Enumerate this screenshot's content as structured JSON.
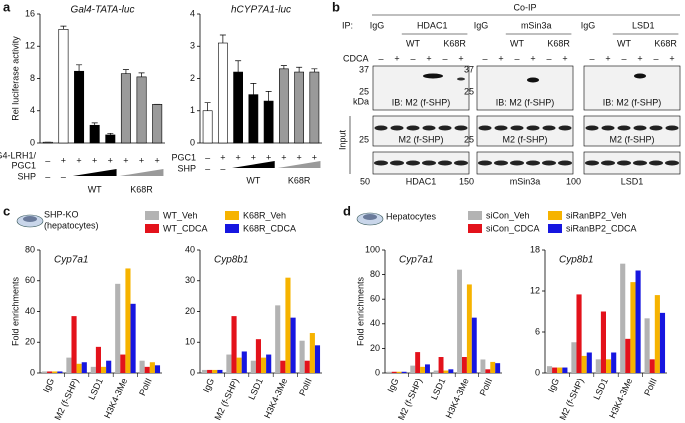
{
  "figure": {
    "panel_labels": [
      "a",
      "b",
      "c",
      "d"
    ],
    "c_caption": [
      "SHP-KO",
      "(hepatocytes)"
    ],
    "d_caption": [
      "Hepatocytes"
    ]
  },
  "chart_data": [
    {
      "type": "bar",
      "title": "Gal4-TATA-luc",
      "ylabel": "Rel luciferase activity",
      "values": [
        0.1,
        14.1,
        8.9,
        2.2,
        1.0,
        8.6,
        8.2,
        4.8
      ],
      "errors": [
        0,
        0.4,
        0.8,
        0.3,
        0.2,
        0.5,
        0.5,
        0
      ],
      "colors": [
        "#ffffff",
        "#ffffff",
        "#000000",
        "#000000",
        "#000000",
        "#9a9a9a",
        "#9a9a9a",
        "#9a9a9a"
      ],
      "ylim": [
        0,
        16
      ],
      "yticks": [
        0,
        4,
        8,
        12,
        16
      ],
      "rows": [
        {
          "label": [
            "G4-LRH1/",
            "PGC1"
          ],
          "signs": [
            "–",
            "+",
            "+",
            "+",
            "+",
            "+",
            "+",
            "+"
          ]
        },
        {
          "label": [
            "SHP"
          ],
          "signs": [
            "–",
            "–"
          ]
        }
      ],
      "groups": [
        "WT",
        "K68R"
      ]
    },
    {
      "type": "bar",
      "title": "hCYP7A1-luc",
      "values": [
        1.0,
        3.1,
        2.2,
        1.5,
        1.3,
        2.3,
        2.2,
        2.2
      ],
      "errors": [
        0.25,
        0.25,
        0.35,
        0.35,
        0.3,
        0.1,
        0.15,
        0.1
      ],
      "colors": [
        "#ffffff",
        "#ffffff",
        "#000000",
        "#000000",
        "#000000",
        "#9a9a9a",
        "#9a9a9a",
        "#9a9a9a"
      ],
      "ylim": [
        0,
        4
      ],
      "yticks": [
        0,
        1,
        2,
        3,
        4
      ],
      "rows": [
        {
          "label": [
            "PGC1"
          ],
          "signs": [
            "–",
            "+",
            "+",
            "+",
            "+",
            "+",
            "+",
            "+"
          ]
        },
        {
          "label": [
            "SHP"
          ],
          "signs": [
            "–",
            "–"
          ]
        }
      ],
      "groups": [
        "WT",
        "K68R"
      ]
    },
    {
      "type": "bar",
      "title": "Cyp7a1",
      "ylabel": "Fold enrichments",
      "categories": [
        "IgG",
        "M2 (f-SHP)",
        "LSD1",
        "H3K4-3Me",
        "PolII"
      ],
      "ylim": [
        0,
        80
      ],
      "yticks": [
        0,
        20,
        40,
        60,
        80
      ],
      "series": [
        {
          "name": "WT_Veh",
          "color": "#b3b3b3",
          "values": [
            1,
            10,
            4,
            58,
            8
          ]
        },
        {
          "name": "WT_CDCA",
          "color": "#e3121b",
          "values": [
            1,
            37,
            17,
            12,
            4
          ]
        },
        {
          "name": "K68R_Veh",
          "color": "#f6b300",
          "values": [
            1,
            6,
            4,
            68,
            7
          ]
        },
        {
          "name": "K68R_CDCA",
          "color": "#1616e0",
          "values": [
            1,
            7,
            8,
            45,
            5
          ]
        }
      ]
    },
    {
      "type": "bar",
      "title": "Cyp8b1",
      "categories": [
        "IgG",
        "M2 (f-SHP)",
        "LSD1",
        "H3K4-3Me",
        "PolII"
      ],
      "ylim": [
        0,
        40
      ],
      "yticks": [
        0,
        10,
        20,
        30,
        40
      ],
      "series": [
        {
          "name": "WT_Veh",
          "color": "#b3b3b3",
          "values": [
            1,
            6,
            4,
            22,
            10.5
          ]
        },
        {
          "name": "WT_CDCA",
          "color": "#e3121b",
          "values": [
            1,
            18.5,
            11,
            4,
            4
          ]
        },
        {
          "name": "K68R_Veh",
          "color": "#f6b300",
          "values": [
            1,
            5,
            5,
            31,
            13
          ]
        },
        {
          "name": "K68R_CDCA",
          "color": "#1616e0",
          "values": [
            1,
            7,
            6,
            18,
            9
          ]
        }
      ]
    },
    {
      "type": "bar",
      "title": "Cyp7a1",
      "ylabel": "Fold enrichments",
      "categories": [
        "IgG",
        "M2 (f-SHP)",
        "LSD1",
        "H3K4-3Me",
        "PolII"
      ],
      "ylim": [
        0,
        100
      ],
      "yticks": [
        0,
        20,
        40,
        60,
        80,
        100
      ],
      "series": [
        {
          "name": "siCon_Veh",
          "color": "#b3b3b3",
          "values": [
            1,
            6,
            2,
            84,
            11
          ]
        },
        {
          "name": "siCon_CDCA",
          "color": "#e3121b",
          "values": [
            1,
            17,
            13,
            13,
            3
          ]
        },
        {
          "name": "siRanBP2_Veh",
          "color": "#f6b300",
          "values": [
            1,
            5,
            2,
            72,
            9
          ]
        },
        {
          "name": "siRanBP2_CDCA",
          "color": "#1616e0",
          "values": [
            1,
            7,
            3,
            45,
            8
          ]
        }
      ]
    },
    {
      "type": "bar",
      "title": "Cyp8b1",
      "categories": [
        "IgG",
        "M2 (f-SHP)",
        "LSD1",
        "H3K4-3Me",
        "PolII"
      ],
      "ylim": [
        0,
        18
      ],
      "yticks": [
        0,
        6,
        12,
        18
      ],
      "series": [
        {
          "name": "siCon_Veh",
          "color": "#b3b3b3",
          "values": [
            1,
            4.5,
            2,
            16,
            8
          ]
        },
        {
          "name": "siCon_CDCA",
          "color": "#e3121b",
          "values": [
            0.8,
            11.5,
            9,
            5,
            2
          ]
        },
        {
          "name": "siRanBP2_Veh",
          "color": "#f6b300",
          "values": [
            0.8,
            2.5,
            2,
            13.3,
            11.4
          ]
        },
        {
          "name": "siRanBP2_CDCA",
          "color": "#1616e0",
          "values": [
            0.8,
            3,
            3,
            15,
            8.8
          ]
        }
      ]
    }
  ],
  "blot": {
    "title": "Co-IP",
    "ip_label": "IP:",
    "ip": [
      "IgG",
      "HDAC1",
      "IgG",
      "mSin3a",
      "IgG",
      "LSD1"
    ],
    "genotypes": [
      "WT",
      "K68R",
      "WT",
      "K68R",
      "WT",
      "K68R"
    ],
    "cdca_label": "CDCA",
    "cdca": [
      "–",
      "+",
      "–",
      "+",
      "–",
      "+",
      "–",
      "+",
      "–",
      "+",
      "–",
      "+",
      "–",
      "+",
      "–",
      "+",
      "–",
      "+"
    ],
    "mw_left": [
      "37",
      "25"
    ],
    "kda": "kDa",
    "mw_mid": [
      "37",
      "25"
    ],
    "ib": [
      "IB: M2 (f-SHP)",
      "IB: M2 (f-SHP)",
      "IB: M2 (f-SHP)"
    ],
    "input_label": "Input",
    "input_ib": [
      "M2 (f-SHP)",
      "M2 (f-SHP)",
      "M2 (f-SHP)"
    ],
    "input_mw": [
      "25",
      "25"
    ],
    "input_targets": [
      "HDAC1",
      "mSin3a",
      "LSD1"
    ],
    "target_mw": [
      "50",
      "150",
      "100"
    ]
  }
}
